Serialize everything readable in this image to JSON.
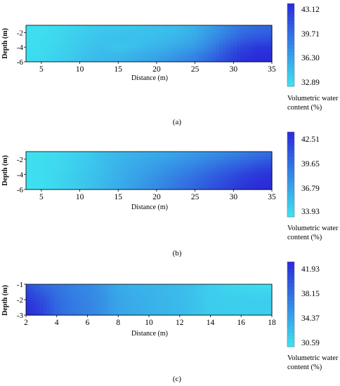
{
  "chart_data": [
    {
      "type": "heatmap",
      "panel_label": "(a)",
      "xlabel": "Distance (m)",
      "ylabel": "Depth (m)",
      "x_ticks": [
        5,
        10,
        15,
        20,
        25,
        30,
        35
      ],
      "y_ticks": [
        -2,
        -4,
        -6
      ],
      "xlim": [
        3,
        35
      ],
      "ylim": [
        -6,
        -1
      ],
      "colorbar": {
        "ticks": [
          "43.12",
          "39.71",
          "36.30",
          "32.89"
        ],
        "range": [
          32.89,
          43.12
        ],
        "label_line1": "Volumetric water",
        "label_line2": "content (%)",
        "color_low": "#3fe3f0",
        "color_high": "#2a2ad8"
      },
      "x": [
        3,
        5,
        7,
        9,
        11,
        13,
        15,
        17,
        19,
        21,
        23,
        25,
        27,
        29,
        31,
        33,
        35
      ],
      "y": [
        -1,
        -2,
        -3,
        -4,
        -5,
        -6
      ],
      "z": [
        [
          33.0,
          33.1,
          33.3,
          33.6,
          34.0,
          34.2,
          34.3,
          34.4,
          34.6,
          34.8,
          35.0,
          35.6,
          36.6,
          37.8,
          38.9,
          39.6,
          39.7
        ],
        [
          33.1,
          33.2,
          33.5,
          33.9,
          34.3,
          34.5,
          34.7,
          34.8,
          34.9,
          35.0,
          35.3,
          35.9,
          37.0,
          38.2,
          39.4,
          40.0,
          40.2
        ],
        [
          33.1,
          33.3,
          33.6,
          34.0,
          34.4,
          34.7,
          34.9,
          34.9,
          35.0,
          35.3,
          35.7,
          36.3,
          37.6,
          39.0,
          40.3,
          41.0,
          41.2
        ],
        [
          33.2,
          33.3,
          33.7,
          34.1,
          34.6,
          34.9,
          34.5,
          34.9,
          35.4,
          35.8,
          36.3,
          37.0,
          38.3,
          40.0,
          41.6,
          42.4,
          42.6
        ],
        [
          33.2,
          33.4,
          33.8,
          34.2,
          34.8,
          35.1,
          35.2,
          35.6,
          36.0,
          36.5,
          37.2,
          38.0,
          39.3,
          40.9,
          42.3,
          42.9,
          43.0
        ],
        [
          33.3,
          33.5,
          33.9,
          34.4,
          35.0,
          35.3,
          35.5,
          35.9,
          36.4,
          37.0,
          37.8,
          38.6,
          39.9,
          41.4,
          42.7,
          43.1,
          43.1
        ]
      ]
    },
    {
      "type": "heatmap",
      "panel_label": "(b)",
      "xlabel": "Distance (m)",
      "ylabel": "Depth (m)",
      "x_ticks": [
        5,
        10,
        15,
        20,
        25,
        30,
        35
      ],
      "y_ticks": [
        -2,
        -4,
        -6
      ],
      "xlim": [
        3,
        35
      ],
      "ylim": [
        -6,
        -1
      ],
      "colorbar": {
        "ticks": [
          "42.51",
          "39.65",
          "36.79",
          "33.93"
        ],
        "range": [
          33.93,
          42.51
        ],
        "label_line1": "Volumetric water",
        "label_line2": "content (%)",
        "color_low": "#3fe3f0",
        "color_high": "#2a2ad8"
      },
      "x": [
        3,
        5,
        7,
        9,
        11,
        13,
        15,
        17,
        19,
        21,
        23,
        25,
        27,
        29,
        31,
        33,
        35
      ],
      "y": [
        -1,
        -2,
        -3,
        -4,
        -5,
        -6
      ],
      "z": [
        [
          34.0,
          34.1,
          34.3,
          34.6,
          35.0,
          35.6,
          36.0,
          36.2,
          36.4,
          36.6,
          36.9,
          37.2,
          37.6,
          38.0,
          38.4,
          38.9,
          39.3
        ],
        [
          34.1,
          34.2,
          34.4,
          34.7,
          35.1,
          35.6,
          36.1,
          36.4,
          36.7,
          37.0,
          37.4,
          37.8,
          38.3,
          38.8,
          39.3,
          39.8,
          40.3
        ],
        [
          34.1,
          34.2,
          34.4,
          34.8,
          35.2,
          35.7,
          36.2,
          36.6,
          37.0,
          37.5,
          38.0,
          38.5,
          39.1,
          39.7,
          40.3,
          40.9,
          41.3
        ],
        [
          34.1,
          34.2,
          34.5,
          34.9,
          35.3,
          35.8,
          36.3,
          36.8,
          37.3,
          37.9,
          38.5,
          39.1,
          39.8,
          40.5,
          41.2,
          41.8,
          42.1
        ],
        [
          34.1,
          34.2,
          34.5,
          34.9,
          35.4,
          35.9,
          36.4,
          37.0,
          37.6,
          38.2,
          38.9,
          39.6,
          40.3,
          41.0,
          41.7,
          42.2,
          42.4
        ],
        [
          34.0,
          34.2,
          34.5,
          34.9,
          35.4,
          35.9,
          36.5,
          37.1,
          37.7,
          38.4,
          39.1,
          39.8,
          40.6,
          41.3,
          41.9,
          42.4,
          42.5
        ]
      ]
    },
    {
      "type": "heatmap",
      "panel_label": "(c)",
      "xlabel": "Distance (m)",
      "ylabel": "Depth (m)",
      "x_ticks": [
        2,
        4,
        6,
        8,
        10,
        12,
        14,
        16,
        18
      ],
      "y_ticks": [
        -1,
        -2,
        -3
      ],
      "xlim": [
        2,
        18
      ],
      "ylim": [
        -3,
        -1
      ],
      "colorbar": {
        "ticks": [
          "41.93",
          "38.15",
          "34.37",
          "30.59"
        ],
        "range": [
          30.59,
          41.93
        ],
        "label_line1": "Volumetric water",
        "label_line2": "content (%)",
        "color_low": "#3fe3f0",
        "color_high": "#2a2ad8"
      },
      "x": [
        2,
        3,
        4,
        5,
        6,
        7,
        8,
        9,
        10,
        11,
        12,
        13,
        14,
        15,
        16,
        17,
        18
      ],
      "y": [
        -1,
        -1.5,
        -2,
        -2.5,
        -3
      ],
      "z": [
        [
          39.5,
          38.0,
          37.2,
          36.6,
          36.0,
          35.2,
          34.0,
          33.6,
          33.4,
          33.2,
          33.0,
          32.6,
          31.8,
          31.4,
          31.0,
          30.8,
          30.7
        ],
        [
          40.5,
          39.0,
          37.6,
          36.8,
          36.2,
          35.4,
          34.2,
          33.8,
          33.6,
          33.3,
          33.0,
          32.5,
          31.9,
          31.7,
          31.6,
          31.5,
          31.5
        ],
        [
          41.2,
          39.8,
          38.0,
          37.0,
          36.4,
          35.6,
          34.4,
          34.0,
          33.7,
          33.4,
          33.1,
          32.6,
          32.0,
          31.9,
          31.9,
          31.9,
          31.9
        ],
        [
          41.7,
          40.3,
          38.2,
          37.1,
          36.5,
          35.6,
          34.4,
          34.0,
          33.7,
          33.4,
          33.1,
          32.6,
          32.0,
          31.9,
          31.9,
          31.9,
          31.9
        ],
        [
          41.9,
          40.5,
          38.3,
          37.2,
          36.5,
          35.6,
          34.4,
          34.0,
          33.7,
          33.4,
          33.1,
          32.6,
          32.0,
          31.9,
          31.9,
          31.9,
          31.9
        ]
      ]
    }
  ]
}
